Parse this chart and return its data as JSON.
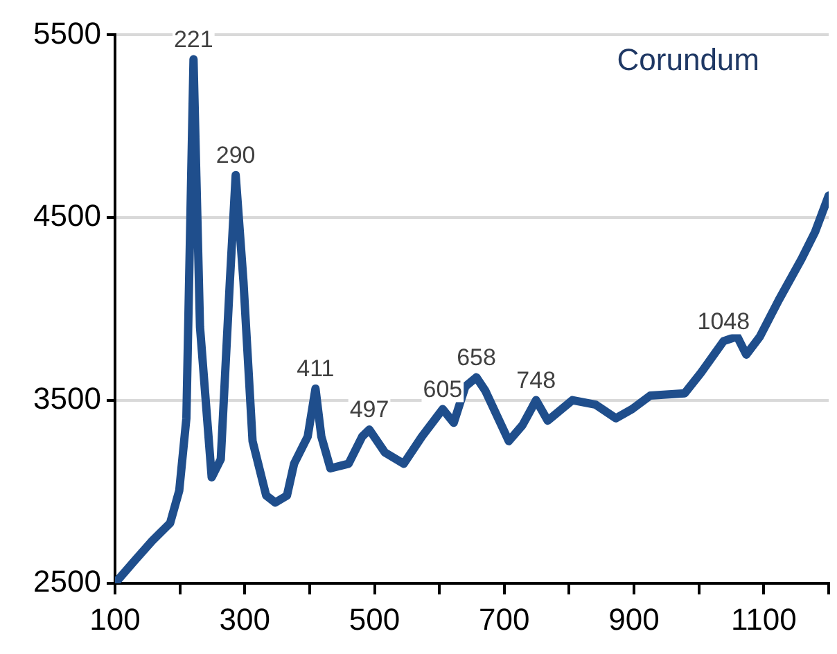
{
  "chart_data": {
    "type": "line",
    "title": "Corundum",
    "x": [
      100,
      129,
      157,
      185,
      199,
      210,
      221,
      231,
      249,
      263,
      277,
      286,
      298,
      312,
      333,
      347,
      365,
      376,
      397,
      409,
      418,
      432,
      460,
      481,
      492,
      516,
      545,
      573,
      605,
      622,
      640,
      657,
      671,
      707,
      728,
      749,
      767,
      805,
      841,
      872,
      897,
      925,
      978,
      1003,
      1038,
      1059,
      1073,
      1094,
      1123,
      1158,
      1179,
      1200
    ],
    "series": [
      {
        "color": "#1f4e8c",
        "values": [
          2500,
          2619,
          2731,
          2830,
          3007,
          3403,
          5367,
          3902,
          3080,
          3179,
          4150,
          4733,
          4150,
          3278,
          2980,
          2942,
          2980,
          3154,
          3303,
          3565,
          3303,
          3129,
          3154,
          3303,
          3341,
          3216,
          3154,
          3303,
          3453,
          3378,
          3577,
          3627,
          3552,
          3278,
          3365,
          3502,
          3390,
          3502,
          3477,
          3403,
          3453,
          3527,
          3539,
          3651,
          3825,
          3850,
          3751,
          3850,
          4049,
          4273,
          4422,
          4621
        ]
      }
    ],
    "xlim": [
      100,
      1200
    ],
    "xticks": [
      100,
      {
        "value": 200,
        "label": null
      },
      300,
      {
        "value": 400,
        "label": null
      },
      500,
      {
        "value": 600,
        "label": null
      },
      700,
      {
        "value": 800,
        "label": null
      },
      900,
      {
        "value": 1000,
        "label": null
      },
      1100,
      {
        "value": 1200,
        "label": null
      }
    ],
    "ylim": [
      2500,
      5500
    ],
    "yticks": [
      2500,
      3500,
      4500,
      5500
    ],
    "grid": "y",
    "marker": "none",
    "line_style": "solid",
    "annotations": [
      {
        "text": "221",
        "x": 221,
        "y": 5367
      },
      {
        "text": "290",
        "x": 286,
        "y": 4733
      },
      {
        "text": "411",
        "x": 409,
        "y": 3565
      },
      {
        "text": "497",
        "x": 492,
        "y": 3341
      },
      {
        "text": "605",
        "x": 605,
        "y": 3453
      },
      {
        "text": "658",
        "x": 657,
        "y": 3627
      },
      {
        "text": "748",
        "x": 749,
        "y": 3502
      },
      {
        "text": "1048",
        "x": 1038,
        "y": 3825
      }
    ]
  }
}
